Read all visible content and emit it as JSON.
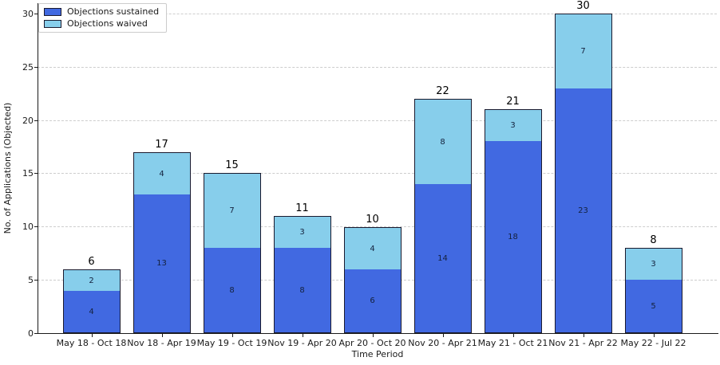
{
  "chart_data": {
    "type": "bar",
    "stacked": true,
    "xlabel": "Time Period",
    "ylabel": "No. of Applications (Objected)",
    "categories": [
      "May 18 - Oct 18",
      "Nov 18 - Apr 19",
      "May 19 - Oct 19",
      "Nov 19 - Apr 20",
      "Apr 20 - Oct 20",
      "Nov 20 - Apr 21",
      "May 21 - Oct 21",
      "Nov 21 - Apr 22",
      "May 22 - Jul 22"
    ],
    "series": [
      {
        "name": "Objections sustained",
        "color": "#4169E1",
        "values": [
          4,
          13,
          8,
          8,
          6,
          14,
          18,
          23,
          5
        ]
      },
      {
        "name": "Objections waived",
        "color": "#87CEEB",
        "values": [
          2,
          4,
          7,
          3,
          4,
          8,
          3,
          7,
          3
        ]
      }
    ],
    "totals": [
      6,
      17,
      15,
      11,
      10,
      22,
      21,
      30,
      8
    ],
    "yticks": [
      0,
      5,
      10,
      15,
      20,
      25,
      30
    ],
    "ylim": [
      0,
      31
    ],
    "grid": "horizontal-dashed",
    "legend_position": "upper-left",
    "edge_color": "#1a1a2e"
  }
}
